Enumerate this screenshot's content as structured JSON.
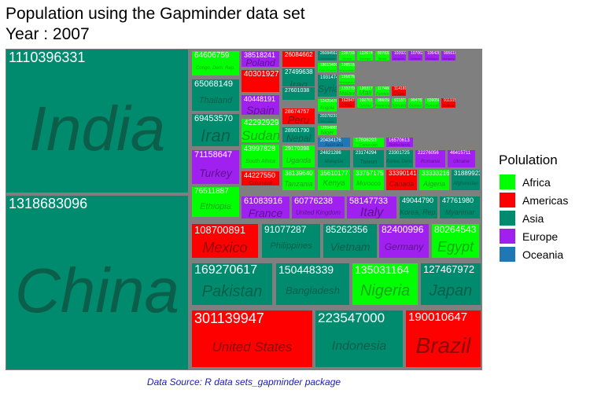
{
  "title": "Population using the Gapminder data set",
  "subtitle": "Year : 2007",
  "source": "Data Source: R data sets_gapminder package",
  "chart_data": {
    "type": "treemap",
    "year": 2007,
    "legend": {
      "title": "Polulation",
      "position": "right",
      "items": [
        {
          "label": "Africa",
          "color": "#00ff00"
        },
        {
          "label": "Americas",
          "color": "#ff0000"
        },
        {
          "label": "Asia",
          "color": "#008b6f"
        },
        {
          "label": "Europe",
          "color": "#a020f0"
        },
        {
          "label": "Oceania",
          "color": "#1f78b4"
        }
      ]
    },
    "items": [
      {
        "country": "India",
        "continent": "Asia",
        "pop": "1110396331"
      },
      {
        "country": "China",
        "continent": "Asia",
        "pop": "1318683096"
      },
      {
        "country": "Congo, Dem. Rep.",
        "continent": "Africa",
        "pop": "64606759"
      },
      {
        "country": "Poland",
        "continent": "Europe",
        "pop": "38518241"
      },
      {
        "country": "Peru",
        "continent": "Americas",
        "pop": "28674757"
      },
      {
        "country": "Thailand",
        "continent": "Asia",
        "pop": "65068149"
      },
      {
        "country": "Spain",
        "continent": "Europe",
        "pop": "40448191"
      },
      {
        "country": "Iraq",
        "continent": "Asia",
        "pop": "27499638"
      },
      {
        "country": "Iran",
        "continent": "Asia",
        "pop": "69453570"
      },
      {
        "country": "Sudan",
        "continent": "Africa",
        "pop": "42292929"
      },
      {
        "country": "Nepal",
        "continent": "Asia",
        "pop": "28901790"
      },
      {
        "country": "South Africa",
        "continent": "Africa",
        "pop": "43997828"
      },
      {
        "country": "Turkey",
        "continent": "Europe",
        "pop": "71158647"
      },
      {
        "country": "Colombia",
        "continent": "Americas",
        "pop": "44227550"
      },
      {
        "country": "Uganda",
        "continent": "Africa",
        "pop": "29170398"
      },
      {
        "country": "Malaysia",
        "continent": "Asia",
        "pop": "24821286"
      },
      {
        "country": "Taiwan",
        "continent": "Asia",
        "pop": "23174294"
      },
      {
        "country": "Tanzania",
        "continent": "Africa",
        "pop": "38139640"
      },
      {
        "country": "Kenya",
        "continent": "Africa",
        "pop": "35610177"
      },
      {
        "country": "Morocco",
        "continent": "Africa",
        "pop": "33757175"
      },
      {
        "country": "Canada",
        "continent": "Americas",
        "pop": "33390141"
      },
      {
        "country": "Algeria",
        "continent": "Africa",
        "pop": "33333216"
      },
      {
        "country": "Afghanistan",
        "continent": "Asia",
        "pop": "31889923"
      },
      {
        "country": "Ethiopia",
        "continent": "Africa",
        "pop": "76511887"
      },
      {
        "country": "France",
        "continent": "Europe",
        "pop": "61083916"
      },
      {
        "country": "United Kingdom",
        "continent": "Europe",
        "pop": "60776238"
      },
      {
        "country": "Italy",
        "continent": "Europe",
        "pop": "58147733"
      },
      {
        "country": "Korea, Rep.",
        "continent": "Asia",
        "pop": "49044790"
      },
      {
        "country": "Myanmar",
        "continent": "Asia",
        "pop": "47761980"
      },
      {
        "country": "Mexico",
        "continent": "Americas",
        "pop": "108700891"
      },
      {
        "country": "Philippines",
        "continent": "Asia",
        "pop": "91077287"
      },
      {
        "country": "Vietnam",
        "continent": "Asia",
        "pop": "85262356"
      },
      {
        "country": "Germany",
        "continent": "Europe",
        "pop": "82400996"
      },
      {
        "country": "Egypt",
        "continent": "Africa",
        "pop": "80264543"
      },
      {
        "country": "Pakistan",
        "continent": "Asia",
        "pop": "169270617"
      },
      {
        "country": "Bangladesh",
        "continent": "Asia",
        "pop": "150448339"
      },
      {
        "country": "Nigeria",
        "continent": "Africa",
        "pop": "135031164"
      },
      {
        "country": "Japan",
        "continent": "Asia",
        "pop": "127467972"
      },
      {
        "country": "United States",
        "continent": "Americas",
        "pop": "301139947"
      },
      {
        "country": "Indonesia",
        "continent": "Asia",
        "pop": "223547000"
      },
      {
        "country": "Brazil",
        "continent": "Americas",
        "pop": "190010647"
      },
      {
        "country": "Argentina",
        "continent": "Americas",
        "pop": "40301927"
      },
      {
        "country": "Venezuela",
        "continent": "Americas",
        "pop": "26084662"
      },
      {
        "country": "Saudi Arabia",
        "continent": "Asia",
        "pop": "27601038"
      },
      {
        "country": "Korea, Dem. Rep.",
        "continent": "Asia",
        "pop": "23301725"
      },
      {
        "country": "Ukraine",
        "continent": "Europe",
        "pop": "46415711"
      },
      {
        "country": "Uzbekistan",
        "continent": "Asia",
        "pop": "26084562"
      },
      {
        "country": "Ghana",
        "continent": "Africa",
        "pop": "22873338"
      },
      {
        "country": "Romania",
        "continent": "Europe",
        "pop": "22276056"
      },
      {
        "country": "Mozambique",
        "continent": "Africa",
        "pop": "19951656"
      },
      {
        "country": "Australia",
        "continent": "Oceania",
        "pop": "20434176"
      },
      {
        "country": "Sri Lanka",
        "continent": "Asia",
        "pop": "20378239"
      },
      {
        "country": "Syria",
        "continent": "Asia",
        "pop": "19314747"
      },
      {
        "country": "Madagascar",
        "continent": "Africa",
        "pop": "19167654"
      },
      {
        "country": "Cameroon",
        "continent": "Africa",
        "pop": "17696293"
      },
      {
        "country": "Cote d'Ivoire",
        "continent": "Africa",
        "pop": "18013409"
      },
      {
        "country": "Angola",
        "continent": "Africa",
        "pop": "12420476"
      },
      {
        "country": "Niger",
        "continent": "Africa",
        "pop": "12894865"
      },
      {
        "country": "Malawi",
        "continent": "Africa",
        "pop": "13327079"
      },
      {
        "country": "Mali",
        "continent": "Africa",
        "pop": "12031795"
      },
      {
        "country": "Chile",
        "continent": "Americas",
        "pop": "16284741"
      },
      {
        "country": "Senegal",
        "continent": "Africa",
        "pop": "12267493"
      },
      {
        "country": "Zambia",
        "continent": "Africa",
        "pop": "11746035"
      },
      {
        "country": "Cuba",
        "continent": "Americas",
        "pop": "11416987"
      },
      {
        "country": "Belgium",
        "continent": "Europe",
        "pop": "10392226"
      },
      {
        "country": "Greece",
        "continent": "Europe",
        "pop": "10706290"
      },
      {
        "country": "Portugal",
        "continent": "Europe",
        "pop": "10642836"
      },
      {
        "country": "Tunisia",
        "continent": "Africa",
        "pop": "10276158"
      },
      {
        "country": "Rwanda",
        "continent": "Africa",
        "pop": "8860588"
      },
      {
        "country": "Somalia",
        "continent": "Africa",
        "pop": "9118773"
      },
      {
        "country": "Guinea",
        "continent": "Africa",
        "pop": "9947814"
      },
      {
        "country": "Hungary",
        "continent": "Europe",
        "pop": "9956108"
      },
      {
        "country": "Burundi",
        "continent": "Africa",
        "pop": "8390505"
      },
      {
        "country": "Benin",
        "continent": "Africa",
        "pop": "8078314"
      },
      {
        "country": "Bolivia",
        "continent": "Americas",
        "pop": "9119152"
      },
      {
        "country": "Netherlands",
        "continent": "Europe",
        "pop": "16570613"
      }
    ]
  }
}
